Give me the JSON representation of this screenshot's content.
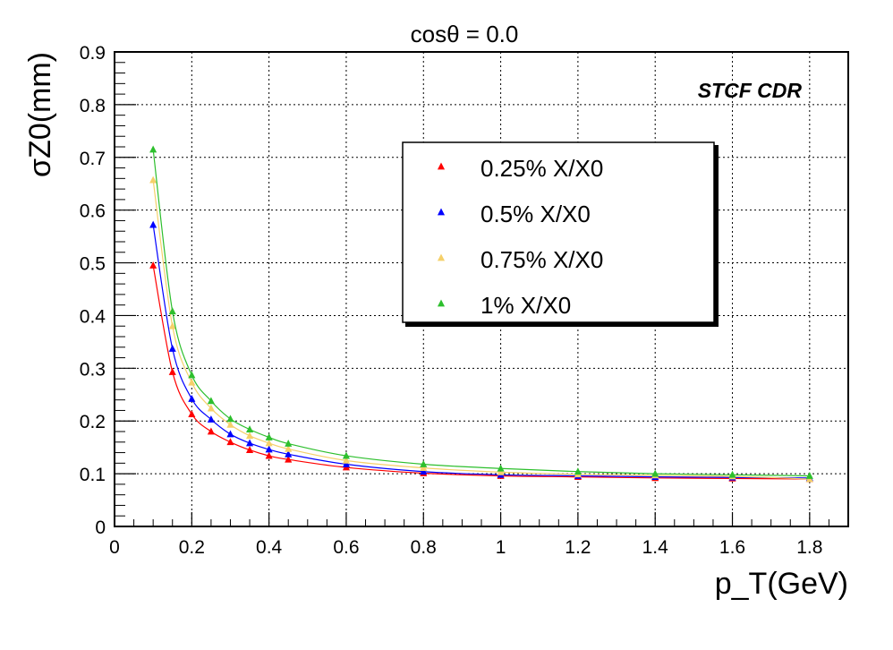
{
  "chart_data": {
    "type": "line",
    "title": "cosθ = 0.0",
    "xlabel": "p_T(GeV)",
    "ylabel": "σZ0(mm)",
    "annotation": "STCF CDR",
    "xlim": [
      0,
      1.9
    ],
    "ylim": [
      0,
      0.9
    ],
    "x_ticks": [
      "0",
      "0.2",
      "0.4",
      "0.6",
      "0.8",
      "1",
      "1.2",
      "1.4",
      "1.6",
      "1.8"
    ],
    "y_ticks": [
      "0",
      "0.1",
      "0.2",
      "0.3",
      "0.4",
      "0.5",
      "0.6",
      "0.7",
      "0.8",
      "0.9"
    ],
    "grid": true,
    "legend_position": "upper-right",
    "marker": "triangle",
    "x": [
      0.1,
      0.15,
      0.2,
      0.25,
      0.3,
      0.35,
      0.4,
      0.45,
      0.6,
      0.8,
      1.0,
      1.2,
      1.4,
      1.6,
      1.8
    ],
    "series": [
      {
        "name": "0.25% X/X0",
        "color": "#ff0000",
        "values": [
          0.495,
          0.293,
          0.213,
          0.18,
          0.16,
          0.145,
          0.134,
          0.127,
          0.112,
          0.101,
          0.096,
          0.094,
          0.092,
          0.091,
          0.09
        ]
      },
      {
        "name": "0.5% X/X0",
        "color": "#0000ff",
        "values": [
          0.572,
          0.337,
          0.242,
          0.203,
          0.175,
          0.158,
          0.146,
          0.137,
          0.118,
          0.104,
          0.098,
          0.096,
          0.094,
          0.093,
          0.092
        ]
      },
      {
        "name": "0.75% X/X0",
        "color": "#f5d06a",
        "values": [
          0.657,
          0.38,
          0.273,
          0.224,
          0.193,
          0.172,
          0.158,
          0.147,
          0.125,
          0.111,
          0.103,
          0.099,
          0.097,
          0.095,
          0.09
        ]
      },
      {
        "name": "1% X/X0",
        "color": "#2dbf2d",
        "values": [
          0.715,
          0.408,
          0.287,
          0.238,
          0.204,
          0.184,
          0.169,
          0.157,
          0.134,
          0.118,
          0.11,
          0.104,
          0.1,
          0.098,
          0.096
        ]
      }
    ]
  }
}
